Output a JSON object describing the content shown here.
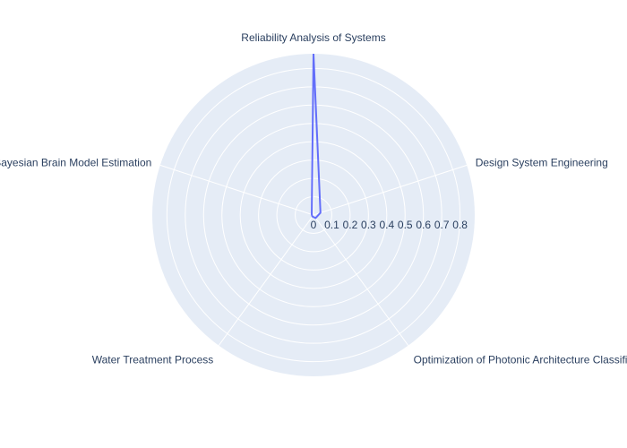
{
  "chart_data": {
    "type": "radar",
    "categories": [
      "Reliability Analysis of Systems",
      "Design System Engineering",
      "Optimization of Photonic Architecture Classification",
      "Water Treatment Process",
      "Bayesian Brain Model Estimation"
    ],
    "series": [
      {
        "values": [
          0.88,
          0.04,
          0.02,
          0.01,
          0.01
        ],
        "color": "#636efa"
      }
    ],
    "radial_ticks": [
      "0",
      "0.1",
      "0.2",
      "0.3",
      "0.4",
      "0.5",
      "0.6",
      "0.7",
      "0.8"
    ],
    "radial_range": [
      0,
      0.88
    ],
    "grid": true,
    "polar_bgcolor": "#e5ecf6",
    "grid_color": "#ffffff",
    "text_color": "#2a3f5f"
  }
}
